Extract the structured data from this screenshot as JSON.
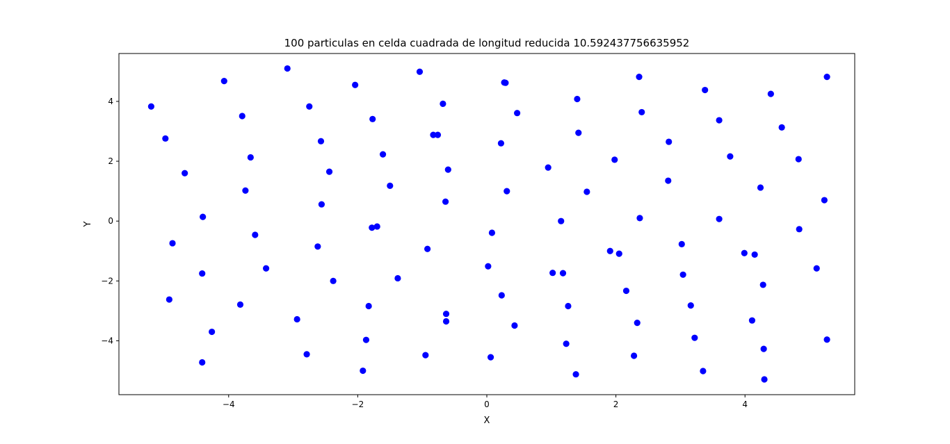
{
  "chart_data": {
    "type": "scatter",
    "title": "100 particulas en celda cuadrada de longitud reducida 10.592437756635952",
    "xlabel": "X",
    "ylabel": "Y",
    "xlim": [
      -5.7,
      5.7
    ],
    "ylim": [
      -5.8,
      5.6
    ],
    "xticks": [
      -4,
      -2,
      0,
      2,
      4
    ],
    "yticks": [
      -4,
      -2,
      0,
      2,
      4
    ],
    "grid": false,
    "marker_color": "#0000ff",
    "points": [
      [
        -5.2,
        3.83
      ],
      [
        -4.98,
        2.76
      ],
      [
        -4.68,
        1.6
      ],
      [
        -4.4,
        0.14
      ],
      [
        -4.87,
        -0.74
      ],
      [
        -4.41,
        -1.75
      ],
      [
        -4.92,
        -2.62
      ],
      [
        -4.26,
        -3.7
      ],
      [
        -4.41,
        -4.72
      ],
      [
        -4.07,
        4.68
      ],
      [
        -3.79,
        3.51
      ],
      [
        -3.66,
        2.13
      ],
      [
        -3.74,
        1.02
      ],
      [
        -3.59,
        -0.46
      ],
      [
        -3.42,
        -1.58
      ],
      [
        -3.82,
        -2.79
      ],
      [
        -3.09,
        5.1
      ],
      [
        -2.75,
        3.83
      ],
      [
        -2.57,
        2.67
      ],
      [
        -2.44,
        1.65
      ],
      [
        -2.56,
        0.56
      ],
      [
        -2.62,
        -0.85
      ],
      [
        -2.38,
        -2.0
      ],
      [
        -2.94,
        -3.28
      ],
      [
        -2.79,
        -4.45
      ],
      [
        -2.04,
        4.55
      ],
      [
        -1.77,
        3.41
      ],
      [
        -1.61,
        2.23
      ],
      [
        -1.5,
        1.18
      ],
      [
        -1.78,
        -0.22
      ],
      [
        -1.7,
        -0.18
      ],
      [
        -1.38,
        -1.91
      ],
      [
        -1.83,
        -2.84
      ],
      [
        -1.87,
        -3.97
      ],
      [
        -1.92,
        -5.0
      ],
      [
        -1.04,
        4.99
      ],
      [
        -0.68,
        3.92
      ],
      [
        -0.83,
        2.88
      ],
      [
        -0.76,
        2.88
      ],
      [
        -0.6,
        1.72
      ],
      [
        -0.64,
        0.65
      ],
      [
        -0.92,
        -0.93
      ],
      [
        -0.63,
        -3.1
      ],
      [
        -0.63,
        -3.35
      ],
      [
        -0.95,
        -4.48
      ],
      [
        0.27,
        4.63
      ],
      [
        0.29,
        4.62
      ],
      [
        0.47,
        3.61
      ],
      [
        0.22,
        2.6
      ],
      [
        0.31,
        1.0
      ],
      [
        0.08,
        -0.39
      ],
      [
        0.02,
        -1.51
      ],
      [
        0.23,
        -2.48
      ],
      [
        0.43,
        -3.49
      ],
      [
        0.06,
        -4.55
      ],
      [
        1.4,
        4.08
      ],
      [
        1.42,
        2.95
      ],
      [
        0.95,
        1.79
      ],
      [
        1.55,
        0.98
      ],
      [
        1.15,
        0.0
      ],
      [
        1.02,
        -1.73
      ],
      [
        1.18,
        -1.74
      ],
      [
        1.26,
        -2.84
      ],
      [
        1.23,
        -4.1
      ],
      [
        1.38,
        -5.12
      ],
      [
        2.36,
        4.82
      ],
      [
        2.4,
        3.64
      ],
      [
        1.98,
        2.05
      ],
      [
        2.37,
        0.1
      ],
      [
        1.91,
        -1.0
      ],
      [
        2.05,
        -1.09
      ],
      [
        2.16,
        -2.33
      ],
      [
        2.33,
        -3.4
      ],
      [
        2.28,
        -4.5
      ],
      [
        2.82,
        2.65
      ],
      [
        2.81,
        1.35
      ],
      [
        3.02,
        -0.77
      ],
      [
        3.04,
        -1.79
      ],
      [
        3.16,
        -2.82
      ],
      [
        3.22,
        -3.9
      ],
      [
        3.35,
        -5.01
      ],
      [
        3.38,
        4.38
      ],
      [
        3.6,
        3.37
      ],
      [
        3.77,
        2.16
      ],
      [
        3.6,
        0.07
      ],
      [
        3.99,
        -1.07
      ],
      [
        4.15,
        -1.12
      ],
      [
        4.28,
        -2.13
      ],
      [
        4.11,
        -3.32
      ],
      [
        4.29,
        -4.27
      ],
      [
        4.3,
        -5.29
      ],
      [
        4.4,
        4.25
      ],
      [
        4.57,
        3.13
      ],
      [
        4.24,
        1.12
      ],
      [
        4.83,
        2.07
      ],
      [
        4.84,
        -0.27
      ],
      [
        5.23,
        0.7
      ],
      [
        5.11,
        -1.58
      ],
      [
        5.27,
        -3.96
      ],
      [
        5.27,
        4.82
      ]
    ]
  }
}
